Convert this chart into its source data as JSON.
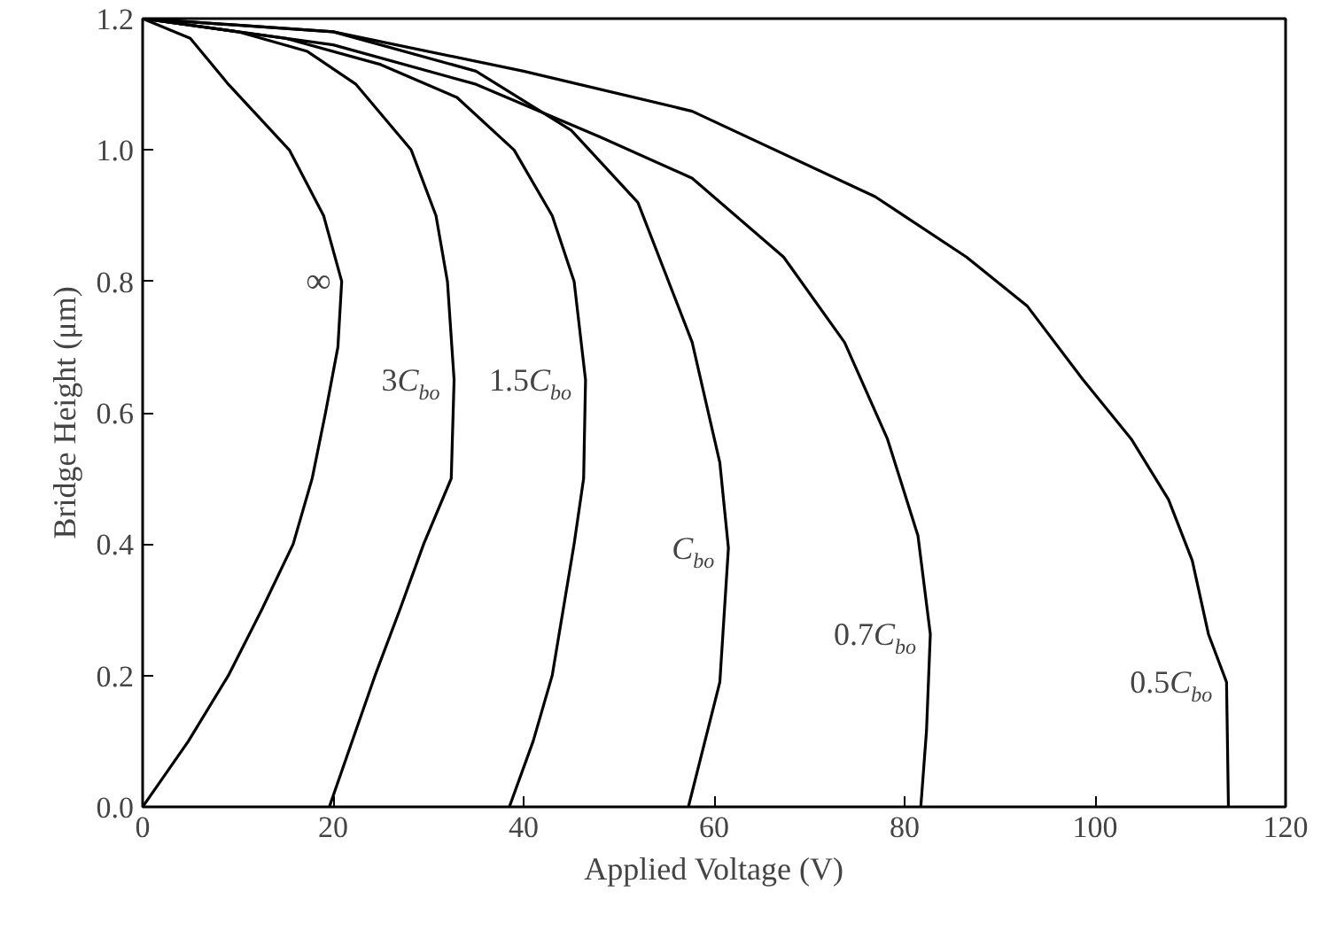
{
  "chart_data": {
    "type": "line",
    "xlabel": "Applied Voltage (V)",
    "ylabel": "Bridge Height (μm)",
    "xlim": [
      0,
      120
    ],
    "xticks": [
      0,
      20,
      40,
      60,
      80,
      100,
      120
    ],
    "ylim": [
      0,
      1.2
    ],
    "yticks": [
      {
        "value": 0,
        "label": "0.0"
      },
      {
        "value": 0.2,
        "label": "0.2"
      },
      {
        "value": 0.4,
        "label": "0.4"
      },
      {
        "value": 0.6,
        "label": "0.6"
      },
      {
        "value": 0.8,
        "label": "0.8"
      },
      {
        "value": 1.0,
        "label": "1.0"
      },
      {
        "value": 1.2,
        "label": "1.2"
      }
    ],
    "grid": false,
    "legend": false,
    "marker": "none",
    "line_style": "solid",
    "series": [
      {
        "name": "∞",
        "color": "#000000",
        "x": [
          0,
          5,
          9,
          15.4,
          19,
          20.9,
          20.5,
          19.2,
          17.8,
          15.8,
          12.5,
          9,
          4.8,
          0
        ],
        "values": [
          1.2,
          1.17,
          1.1,
          1.0,
          0.9,
          0.8,
          0.7,
          0.6,
          0.5,
          0.4,
          0.3,
          0.2,
          0.1,
          0
        ]
      },
      {
        "name": "3C$_{bo}$",
        "color": "#000000",
        "x": [
          0,
          10,
          17.3,
          22.4,
          28.2,
          30.8,
          32,
          32.7,
          32.4,
          29.5,
          27,
          24.4,
          22,
          19.6
        ],
        "values": [
          1.2,
          1.18,
          1.15,
          1.1,
          1.0,
          0.9,
          0.8,
          0.65,
          0.5,
          0.4,
          0.3,
          0.2,
          0.1,
          0
        ]
      },
      {
        "name": "1.5C$_{bo}$",
        "color": "#000000",
        "x": [
          0,
          15,
          25,
          33,
          39,
          43,
          45.3,
          46.5,
          46.3,
          45.3,
          43,
          41,
          38.5
        ],
        "values": [
          1.2,
          1.17,
          1.13,
          1.08,
          1.0,
          0.9,
          0.8,
          0.65,
          0.5,
          0.4,
          0.2,
          0.1,
          0
        ]
      },
      {
        "name": "C$_{bo}$",
        "color": "#000000",
        "x": [
          0,
          20,
          35,
          45,
          52,
          57.7,
          60.6,
          61.5,
          60.6,
          57.3
        ],
        "values": [
          1.2,
          1.18,
          1.12,
          1.03,
          0.92,
          0.707,
          0.524,
          0.394,
          0.19,
          0
        ]
      },
      {
        "name": "0.7C$_{bo}$",
        "color": "#000000",
        "x": [
          0,
          20,
          35,
          48,
          57.7,
          67.3,
          73.7,
          78.2,
          81.4,
          82.7,
          82.3,
          81.7
        ],
        "values": [
          1.2,
          1.16,
          1.1,
          1.02,
          0.957,
          0.837,
          0.707,
          0.56,
          0.413,
          0.263,
          0.116,
          0
        ]
      },
      {
        "name": "0.5C$_{bo}$",
        "color": "#000000",
        "x": [
          0,
          20,
          40,
          57.7,
          76.9,
          86.5,
          92.9,
          98.7,
          103.8,
          107.7,
          110.2,
          111.9,
          113.8,
          114
        ],
        "values": [
          1.2,
          1.18,
          1.12,
          1.059,
          0.929,
          0.837,
          0.762,
          0.651,
          0.56,
          0.468,
          0.375,
          0.263,
          0.19,
          0
        ]
      }
    ]
  }
}
